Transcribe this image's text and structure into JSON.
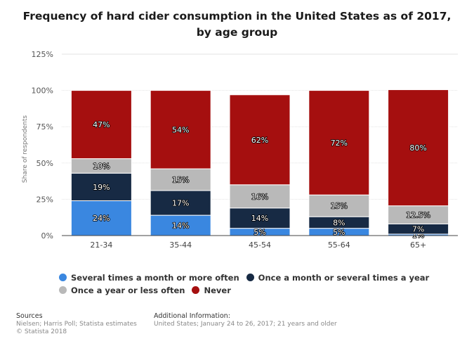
{
  "chart_data": {
    "type": "bar",
    "stacked": true,
    "title": "Frequency of hard cider consumption in the United States as of 2017, by age group",
    "title_lines": [
      "Frequency of hard cider consumption in the United States as of 2017,",
      "by age group"
    ],
    "xlabel": "",
    "ylabel": "Share of respondents",
    "ylim": [
      0,
      125
    ],
    "yticks": [
      0,
      25,
      50,
      75,
      100,
      125
    ],
    "ytick_labels": [
      "0%",
      "25%",
      "50%",
      "75%",
      "100%",
      "125%"
    ],
    "grid": true,
    "categories": [
      "21-34",
      "35-44",
      "45-54",
      "55-64",
      "65+"
    ],
    "series": [
      {
        "name": "Several times a month or more often",
        "color": "#3a87e0",
        "values": [
          24,
          14,
          5,
          5,
          1
        ],
        "labels": [
          "24%",
          "14%",
          "5%",
          "5%",
          "1%"
        ]
      },
      {
        "name": "Once a month or several times a year",
        "color": "#172a44",
        "values": [
          19,
          17,
          14,
          8,
          7
        ],
        "labels": [
          "19%",
          "17%",
          "14%",
          "8%",
          "7%"
        ]
      },
      {
        "name": "Once a year or less often",
        "color": "#b9b9b9",
        "values": [
          10,
          15,
          16,
          15,
          12.5
        ],
        "labels": [
          "10%",
          "15%",
          "16%",
          "15%",
          "12.5%"
        ]
      },
      {
        "name": "Never",
        "color": "#a50f0f",
        "values": [
          47,
          54,
          62,
          72,
          80
        ],
        "labels": [
          "47%",
          "54%",
          "62%",
          "72%",
          "80%"
        ]
      }
    ],
    "legend_position": "bottom"
  },
  "footer": {
    "sources_heading": "Sources",
    "sources_line1": "Nielsen; Harris Poll; Statista estimates",
    "sources_line2": "© Statista 2018",
    "info_heading": "Additional Information:",
    "info_line1": "United States; January 24 to 26, 2017; 21 years and older"
  }
}
